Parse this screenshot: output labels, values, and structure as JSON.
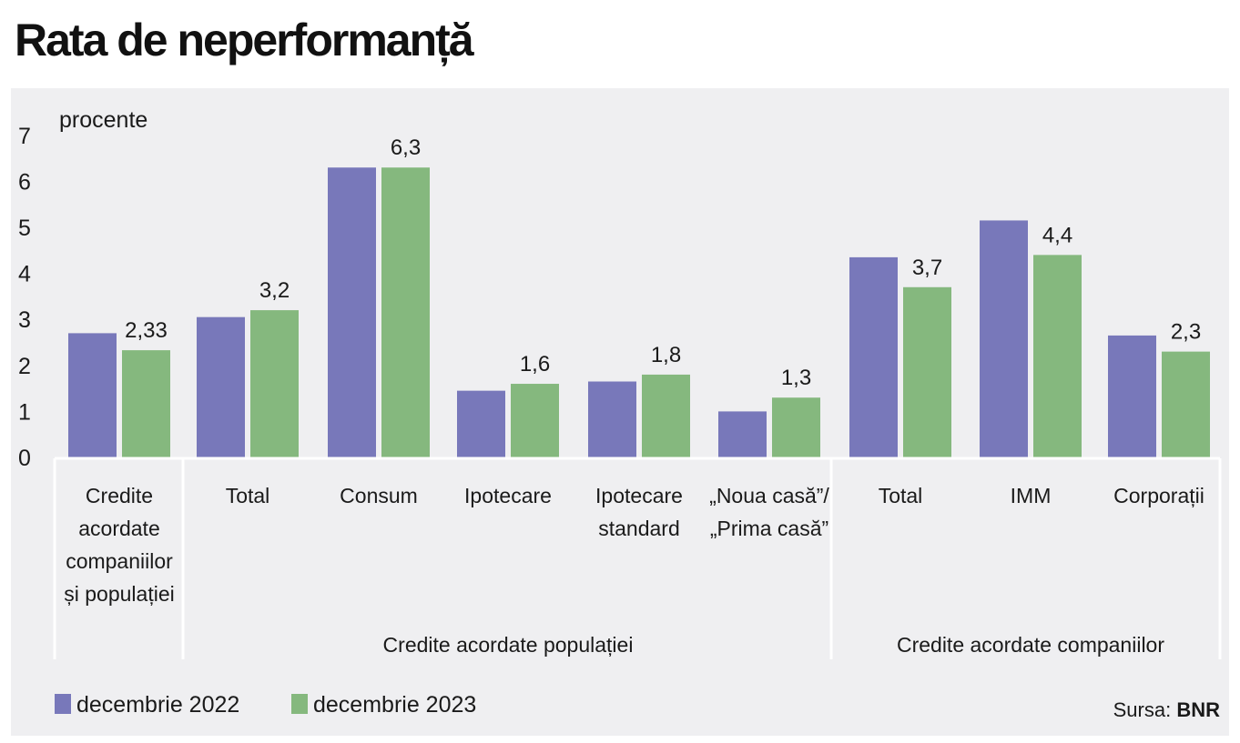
{
  "title": "Rata de neperformanță",
  "chart_data": {
    "type": "bar",
    "ylabel": "procente",
    "ylim": [
      0,
      7
    ],
    "yticks": [
      "0",
      "1",
      "2",
      "3",
      "4",
      "5",
      "6",
      "7"
    ],
    "categories": [
      [
        "Credite",
        "acordate",
        "companiilor",
        "și populației"
      ],
      [
        "Total"
      ],
      [
        "Consum"
      ],
      [
        "Ipotecare"
      ],
      [
        "Ipotecare",
        "standard"
      ],
      [
        "„Noua casă”/",
        "„Prima casă”"
      ],
      [
        "Total"
      ],
      [
        "IMM"
      ],
      [
        "Corporații"
      ]
    ],
    "groups": [
      {
        "label": "",
        "start": 0,
        "end": 0
      },
      {
        "label": "Credite acordate populației",
        "start": 1,
        "end": 5
      },
      {
        "label": "Credite acordate companiilor",
        "start": 6,
        "end": 8
      }
    ],
    "series": [
      {
        "name": "decembrie 2022",
        "color": "#7878ba",
        "values": [
          2.7,
          3.05,
          6.3,
          1.45,
          1.65,
          1.0,
          4.35,
          5.15,
          2.65
        ]
      },
      {
        "name": "decembrie 2023",
        "color": "#85b87e",
        "values": [
          2.33,
          3.2,
          6.3,
          1.6,
          1.8,
          1.3,
          3.7,
          4.4,
          2.3
        ]
      }
    ],
    "data_labels": [
      "2,33",
      "3,2",
      "6,3",
      "1,6",
      "1,8",
      "1,3",
      "3,7",
      "4,4",
      "2,3"
    ],
    "grid": false,
    "legend": "bottom-left"
  },
  "source": {
    "prefix": "Sursa:",
    "name": "BNR"
  }
}
